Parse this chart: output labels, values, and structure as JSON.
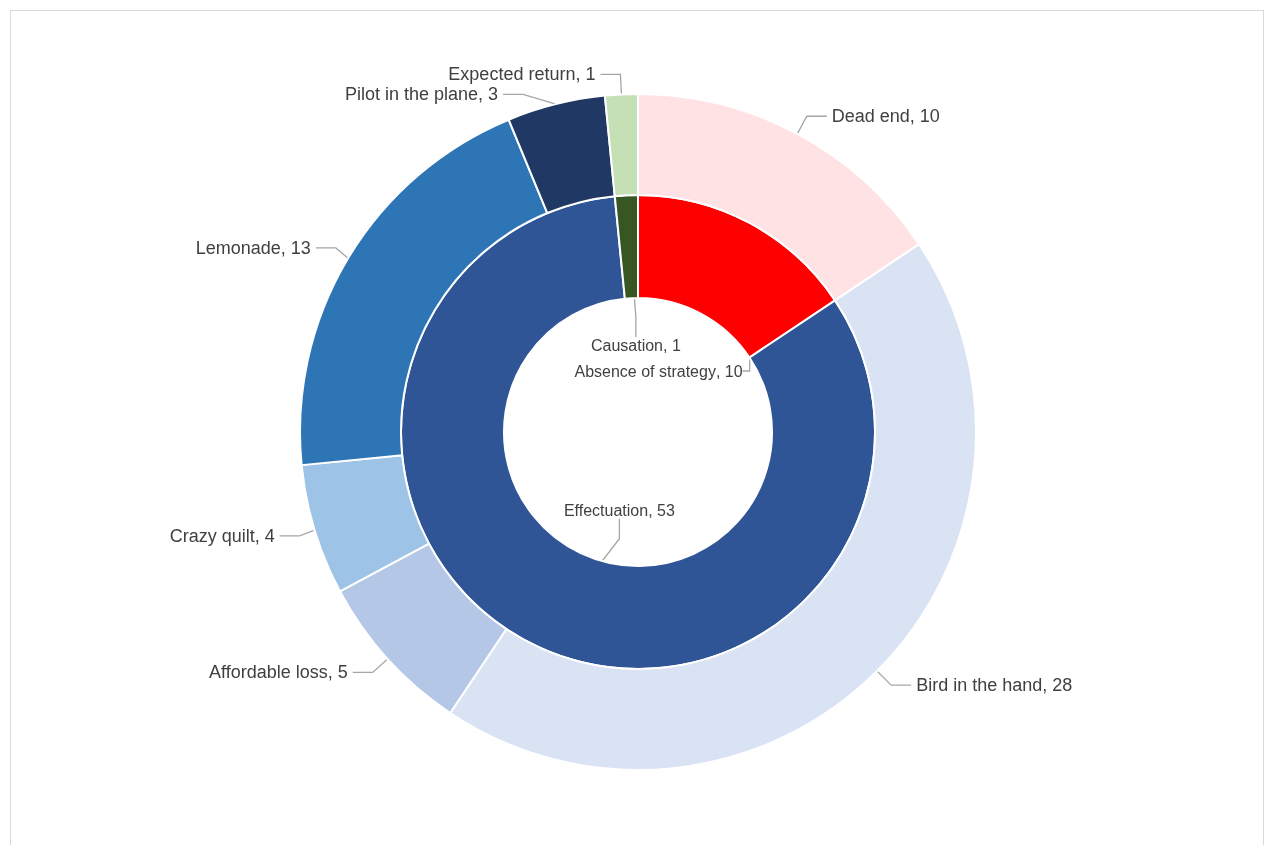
{
  "chart_data": [
    {
      "type": "donut",
      "categories": [
        "Absence of strategy",
        "Effectuation",
        "Causation"
      ],
      "values": [
        10,
        53,
        1
      ],
      "colors": [
        "#ff0000",
        "#2f5597",
        "#375623"
      ],
      "value_labels": [
        ", 10",
        ", 53",
        ", 1"
      ]
    },
    {
      "type": "donut",
      "categories": [
        "Dead end",
        "Bird in the hand",
        "Affordable loss",
        "Crazy quilt",
        "Lemonade",
        "Pilot in the plane",
        "Expected return"
      ],
      "values": [
        10,
        28,
        5,
        4,
        13,
        3,
        1
      ],
      "colors": [
        "#ffe3e4",
        "#dae3f3",
        "#b4c7e7",
        "#9dc3e6",
        "#2e75b6",
        "#203864",
        "#c5e0b4"
      ],
      "value_labels": [
        ", 10",
        ", 28",
        ", 5",
        ", 4",
        ", 13",
        ", 3",
        ", 1"
      ]
    }
  ]
}
